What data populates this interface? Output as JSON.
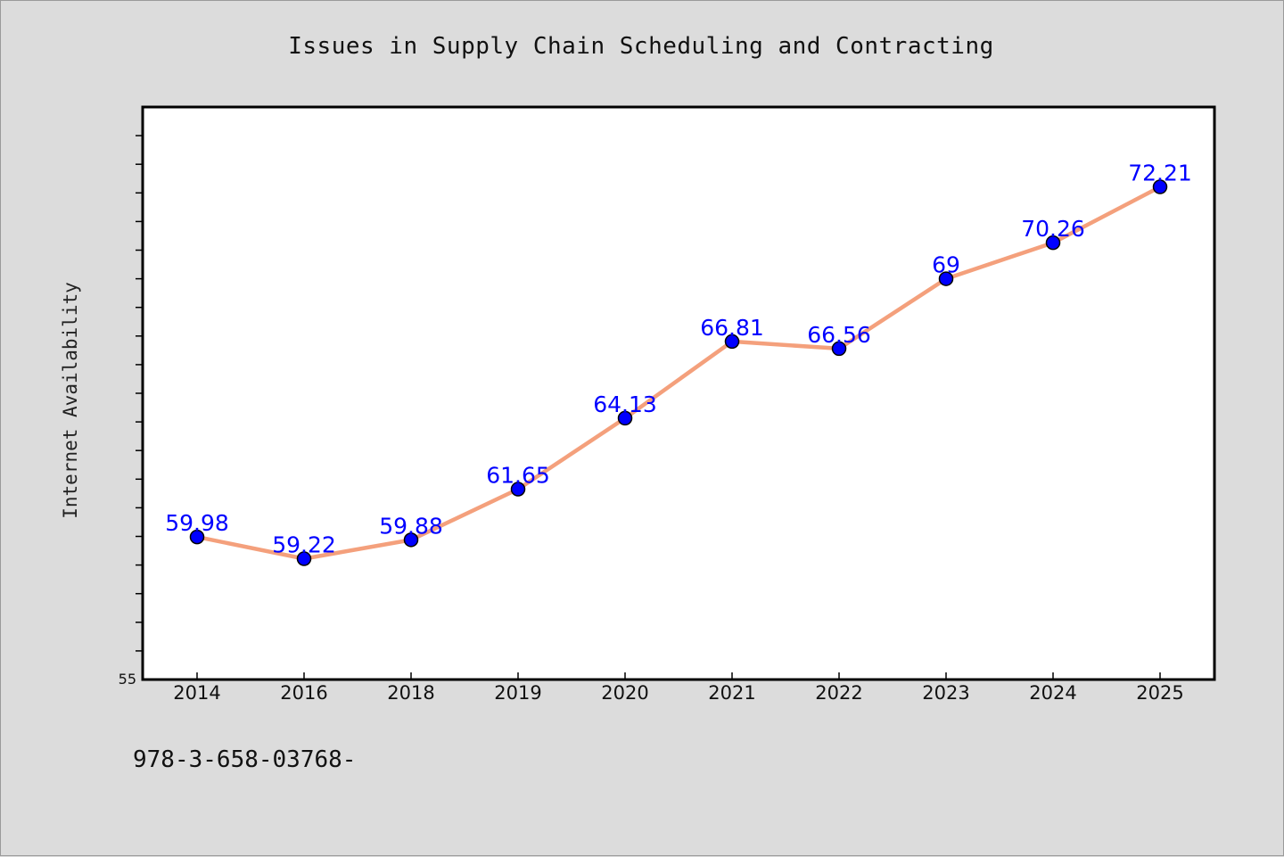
{
  "chart_data": {
    "type": "line",
    "title": "Issues in Supply Chain Scheduling and Contracting",
    "xlabel": "",
    "ylabel": "Internet Availability",
    "categories": [
      "2014",
      "2016",
      "2018",
      "2019",
      "2020",
      "2021",
      "2022",
      "2023",
      "2024",
      "2025"
    ],
    "series": [
      {
        "values": [
          59.98,
          59.22,
          59.88,
          61.65,
          64.13,
          66.81,
          66.56,
          69,
          70.26,
          72.21
        ],
        "labels": [
          "59.98",
          "59.22",
          "59.88",
          "61.65",
          "64.13",
          "66.81",
          "66.56",
          "69",
          "70.26",
          "72.21"
        ],
        "line_color": "#f4a07c",
        "marker_color": "#0000ff"
      }
    ],
    "ylim": [
      55,
      75
    ],
    "ytick_labels": [
      "55"
    ],
    "grid": false,
    "legend": "none"
  },
  "footer": {
    "code": "978-3-658-03768-"
  }
}
